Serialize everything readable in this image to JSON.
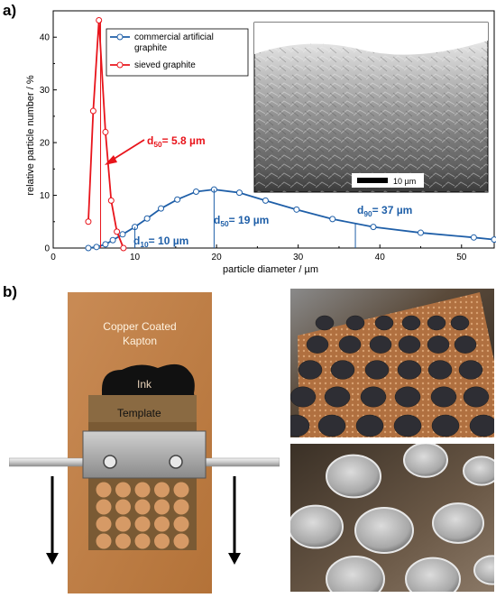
{
  "panels": {
    "a": "a)",
    "b": "b)"
  },
  "chart_data": {
    "type": "line",
    "xlabel": "particle diameter / µm",
    "ylabel": "relative particle number / %",
    "xlim": [
      0,
      54
    ],
    "ylim": [
      0,
      45
    ],
    "xticks": [
      "0",
      "10",
      "20",
      "30",
      "40",
      "50"
    ],
    "yticks": [
      "0",
      "10",
      "20",
      "30",
      "40"
    ],
    "legend_position": "top-left",
    "series": [
      {
        "name": "commercial artificial graphite",
        "color": "#1f5fa8",
        "x": [
          4.3,
          5.3,
          6.4,
          7.3,
          8.5,
          10,
          11.5,
          13.2,
          15.2,
          17.5,
          19.7,
          22.8,
          26,
          29.8,
          34.2,
          39.2,
          45,
          51.5,
          54
        ],
        "y": [
          0,
          0.2,
          0.7,
          1.5,
          2.6,
          4,
          5.6,
          7.5,
          9.2,
          10.7,
          11.1,
          10.5,
          9,
          7.3,
          5.5,
          4,
          2.9,
          2.0,
          1.6
        ]
      },
      {
        "name": "sieved graphite",
        "color": "#e8141b",
        "x": [
          4.3,
          4.9,
          5.6,
          6.4,
          7.1,
          7.8,
          8.6
        ],
        "y": [
          5,
          26,
          43.2,
          22,
          9,
          3.1,
          0
        ]
      }
    ],
    "annotations": {
      "sieved_d50": {
        "text": "= 5.8 µm",
        "sym": "d",
        "sub": "50",
        "x": 5.8
      },
      "d10": {
        "text": "= 10 µm",
        "sym": "d",
        "sub": "10",
        "x": 10
      },
      "d50": {
        "text": "= 19 µm",
        "sym": "d",
        "sub": "50",
        "x": 19.7
      },
      "d90": {
        "text": "= 37 µm",
        "sym": "d",
        "sub": "90",
        "x": 37
      }
    },
    "scale_bar": "10 µm"
  },
  "schematic": {
    "substrate_label_line1": "Copper Coated",
    "substrate_label_line2": "Kapton",
    "ink_label": "Ink",
    "template_label": "Template"
  }
}
